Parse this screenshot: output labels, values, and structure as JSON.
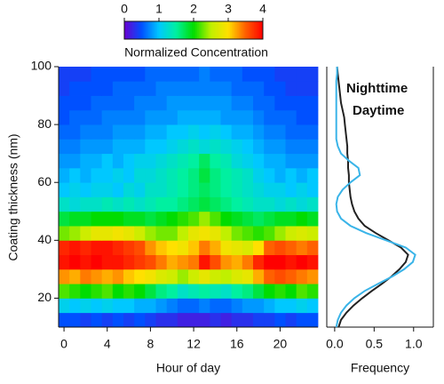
{
  "chart_data": [
    {
      "type": "heatmap",
      "x_label": "Hour of day",
      "y_label": "Coating thickness (nm)",
      "x": [
        0,
        1,
        2,
        3,
        4,
        5,
        6,
        7,
        8,
        9,
        10,
        11,
        12,
        13,
        14,
        15,
        16,
        17,
        18,
        19,
        20,
        21,
        22,
        23
      ],
      "y_bins": [
        10,
        15,
        20,
        25,
        30,
        35,
        40,
        45,
        50,
        55,
        60,
        65,
        70,
        75,
        80,
        85,
        90,
        95,
        100
      ],
      "values": [
        [
          0.5,
          0.5,
          0.4,
          0.5,
          0.4,
          0.5,
          0.4,
          0.5,
          0.4,
          0.3,
          0.3,
          0.2,
          0.2,
          0.2,
          0.3,
          0.2,
          0.3,
          0.3,
          0.4,
          0.4,
          0.5,
          0.4,
          0.5,
          0.5
        ],
        [
          1.1,
          1.0,
          1.1,
          1.0,
          1.1,
          1.0,
          1.0,
          0.9,
          0.9,
          0.8,
          0.7,
          0.6,
          0.6,
          0.7,
          0.6,
          0.6,
          0.7,
          0.8,
          0.8,
          0.9,
          1.0,
          1.0,
          1.1,
          1.0
        ],
        [
          2.2,
          2.1,
          2.0,
          2.1,
          2.2,
          2.0,
          2.1,
          2.0,
          1.8,
          1.6,
          1.5,
          1.3,
          1.4,
          1.5,
          1.4,
          1.3,
          1.5,
          1.6,
          1.8,
          2.0,
          2.1,
          2.0,
          2.2,
          2.1
        ],
        [
          3.3,
          3.2,
          3.4,
          3.3,
          3.2,
          3.3,
          3.1,
          3.0,
          2.9,
          2.7,
          2.6,
          2.4,
          2.6,
          2.8,
          2.6,
          2.5,
          2.7,
          2.8,
          3.2,
          3.5,
          3.6,
          3.5,
          3.4,
          3.3
        ],
        [
          3.9,
          4.0,
          3.9,
          4.0,
          3.9,
          3.9,
          3.8,
          3.7,
          3.6,
          3.4,
          3.2,
          3.3,
          3.4,
          3.9,
          3.6,
          3.3,
          3.2,
          3.4,
          3.8,
          4.0,
          4.0,
          3.9,
          4.0,
          3.9
        ],
        [
          3.8,
          3.9,
          3.8,
          3.9,
          3.9,
          3.8,
          3.7,
          3.6,
          3.3,
          3.1,
          3.0,
          2.9,
          3.1,
          3.4,
          3.2,
          2.9,
          2.8,
          2.7,
          3.0,
          3.5,
          3.6,
          3.5,
          3.4,
          3.5
        ],
        [
          2.3,
          2.4,
          2.6,
          2.8,
          2.8,
          2.9,
          2.8,
          2.6,
          2.4,
          2.3,
          2.3,
          2.5,
          2.8,
          2.9,
          2.8,
          2.5,
          2.3,
          2.2,
          2.1,
          2.2,
          2.4,
          2.6,
          2.7,
          2.6
        ],
        [
          1.8,
          1.9,
          1.9,
          2.0,
          2.0,
          2.0,
          1.9,
          1.9,
          1.8,
          1.9,
          2.0,
          2.1,
          2.2,
          2.4,
          2.2,
          2.0,
          1.9,
          1.8,
          1.7,
          1.8,
          1.9,
          1.9,
          2.0,
          1.9
        ],
        [
          1.3,
          1.2,
          1.3,
          1.3,
          1.4,
          1.3,
          1.4,
          1.3,
          1.4,
          1.5,
          1.5,
          1.6,
          1.7,
          1.8,
          1.7,
          1.6,
          1.5,
          1.4,
          1.3,
          1.3,
          1.2,
          1.3,
          1.2,
          1.3
        ],
        [
          1.0,
          1.1,
          1.0,
          1.1,
          1.1,
          1.0,
          1.2,
          1.1,
          1.3,
          1.3,
          1.4,
          1.5,
          1.6,
          1.7,
          1.6,
          1.5,
          1.4,
          1.3,
          1.2,
          1.1,
          1.1,
          1.0,
          1.1,
          1.0
        ],
        [
          0.9,
          1.0,
          0.9,
          1.0,
          1.0,
          1.1,
          1.0,
          1.2,
          1.2,
          1.3,
          1.4,
          1.5,
          1.6,
          1.8,
          1.6,
          1.5,
          1.4,
          1.3,
          1.1,
          1.0,
          0.9,
          1.0,
          0.9,
          1.0
        ],
        [
          0.8,
          0.8,
          0.9,
          0.9,
          1.0,
          0.9,
          1.0,
          1.1,
          1.1,
          1.2,
          1.3,
          1.4,
          1.5,
          1.7,
          1.5,
          1.4,
          1.2,
          1.1,
          1.0,
          0.9,
          0.9,
          0.8,
          0.8,
          0.8
        ],
        [
          0.7,
          0.7,
          0.8,
          0.8,
          0.8,
          0.9,
          0.9,
          0.9,
          1.0,
          1.0,
          1.1,
          1.2,
          1.3,
          1.2,
          1.3,
          1.2,
          1.1,
          1.0,
          0.9,
          0.8,
          0.8,
          0.7,
          0.7,
          0.7
        ],
        [
          0.6,
          0.6,
          0.7,
          0.7,
          0.7,
          0.8,
          0.8,
          0.8,
          0.9,
          0.9,
          1.0,
          1.0,
          1.1,
          1.0,
          1.1,
          1.0,
          0.9,
          0.9,
          0.8,
          0.7,
          0.7,
          0.6,
          0.6,
          0.6
        ],
        [
          0.5,
          0.6,
          0.6,
          0.6,
          0.7,
          0.7,
          0.7,
          0.7,
          0.8,
          0.8,
          0.8,
          0.9,
          0.9,
          0.9,
          0.9,
          0.8,
          0.8,
          0.8,
          0.7,
          0.6,
          0.6,
          0.6,
          0.5,
          0.5
        ],
        [
          0.5,
          0.5,
          0.5,
          0.6,
          0.6,
          0.6,
          0.6,
          0.7,
          0.7,
          0.7,
          0.8,
          0.8,
          0.8,
          0.8,
          0.8,
          0.8,
          0.7,
          0.7,
          0.6,
          0.6,
          0.5,
          0.5,
          0.5,
          0.5
        ],
        [
          0.4,
          0.5,
          0.5,
          0.5,
          0.5,
          0.6,
          0.6,
          0.6,
          0.6,
          0.7,
          0.7,
          0.7,
          0.7,
          0.7,
          0.7,
          0.7,
          0.6,
          0.6,
          0.6,
          0.5,
          0.5,
          0.4,
          0.4,
          0.4
        ],
        [
          0.4,
          0.4,
          0.4,
          0.5,
          0.5,
          0.5,
          0.5,
          0.5,
          0.6,
          0.6,
          0.6,
          0.6,
          0.6,
          0.7,
          0.6,
          0.6,
          0.6,
          0.5,
          0.5,
          0.5,
          0.4,
          0.4,
          0.4,
          0.4
        ]
      ],
      "xlim": [
        -0.5,
        23.5
      ],
      "xticks": [
        0,
        4,
        8,
        12,
        16,
        20
      ],
      "ylim": [
        10,
        100
      ],
      "yticks": [
        20,
        40,
        60,
        80,
        100
      ],
      "colormap": [
        "#6a00d0",
        "#0050ff",
        "#00c8ff",
        "#00f0a0",
        "#00dc00",
        "#c0f000",
        "#ffe000",
        "#ff6000",
        "#ff0000"
      ],
      "colorbar": {
        "label": "Normalized Concentration",
        "lim": [
          0,
          4
        ],
        "ticks": [
          0,
          1,
          2,
          3,
          4
        ]
      }
    },
    {
      "type": "line",
      "orientation": "vertical",
      "x_label": "Frequency",
      "y": [
        10,
        12.5,
        15,
        17.5,
        20,
        22.5,
        25,
        27.5,
        30,
        32.5,
        35,
        37.5,
        40,
        42.5,
        45,
        47.5,
        50,
        52.5,
        55,
        57.5,
        60,
        62.5,
        65,
        67.5,
        70,
        72.5,
        75,
        77.5,
        80,
        82.5,
        85,
        87.5,
        90,
        92.5,
        95,
        97.5,
        100
      ],
      "series": [
        {
          "name": "Nighttime",
          "color": "#222222",
          "values": [
            0.05,
            0.08,
            0.15,
            0.24,
            0.35,
            0.47,
            0.6,
            0.72,
            0.82,
            0.9,
            0.93,
            0.84,
            0.68,
            0.52,
            0.38,
            0.3,
            0.25,
            0.22,
            0.2,
            0.19,
            0.18,
            0.18,
            0.17,
            0.17,
            0.16,
            0.16,
            0.15,
            0.14,
            0.13,
            0.12,
            0.1,
            0.08,
            0.07,
            0.06,
            0.05,
            0.04,
            0.03
          ]
        },
        {
          "name": "Daytime",
          "color": "#3ab4e8",
          "values": [
            0.02,
            0.04,
            0.08,
            0.15,
            0.25,
            0.38,
            0.55,
            0.73,
            0.88,
            0.99,
            1.02,
            0.9,
            0.65,
            0.4,
            0.2,
            0.08,
            0.03,
            0.02,
            0.04,
            0.1,
            0.2,
            0.32,
            0.3,
            0.18,
            0.08,
            0.04,
            0.02,
            0.02,
            0.02,
            0.02,
            0.02,
            0.02,
            0.02,
            0.02,
            0.02,
            0.03,
            0.03
          ]
        }
      ],
      "xlim": [
        -0.1,
        1.25
      ],
      "xticks": [
        {
          "value": 0,
          "label": "0.0"
        },
        {
          "value": 0.5,
          "label": "0.5"
        },
        {
          "value": 1,
          "label": "1.0"
        }
      ],
      "ylim": [
        10,
        100
      ]
    }
  ]
}
